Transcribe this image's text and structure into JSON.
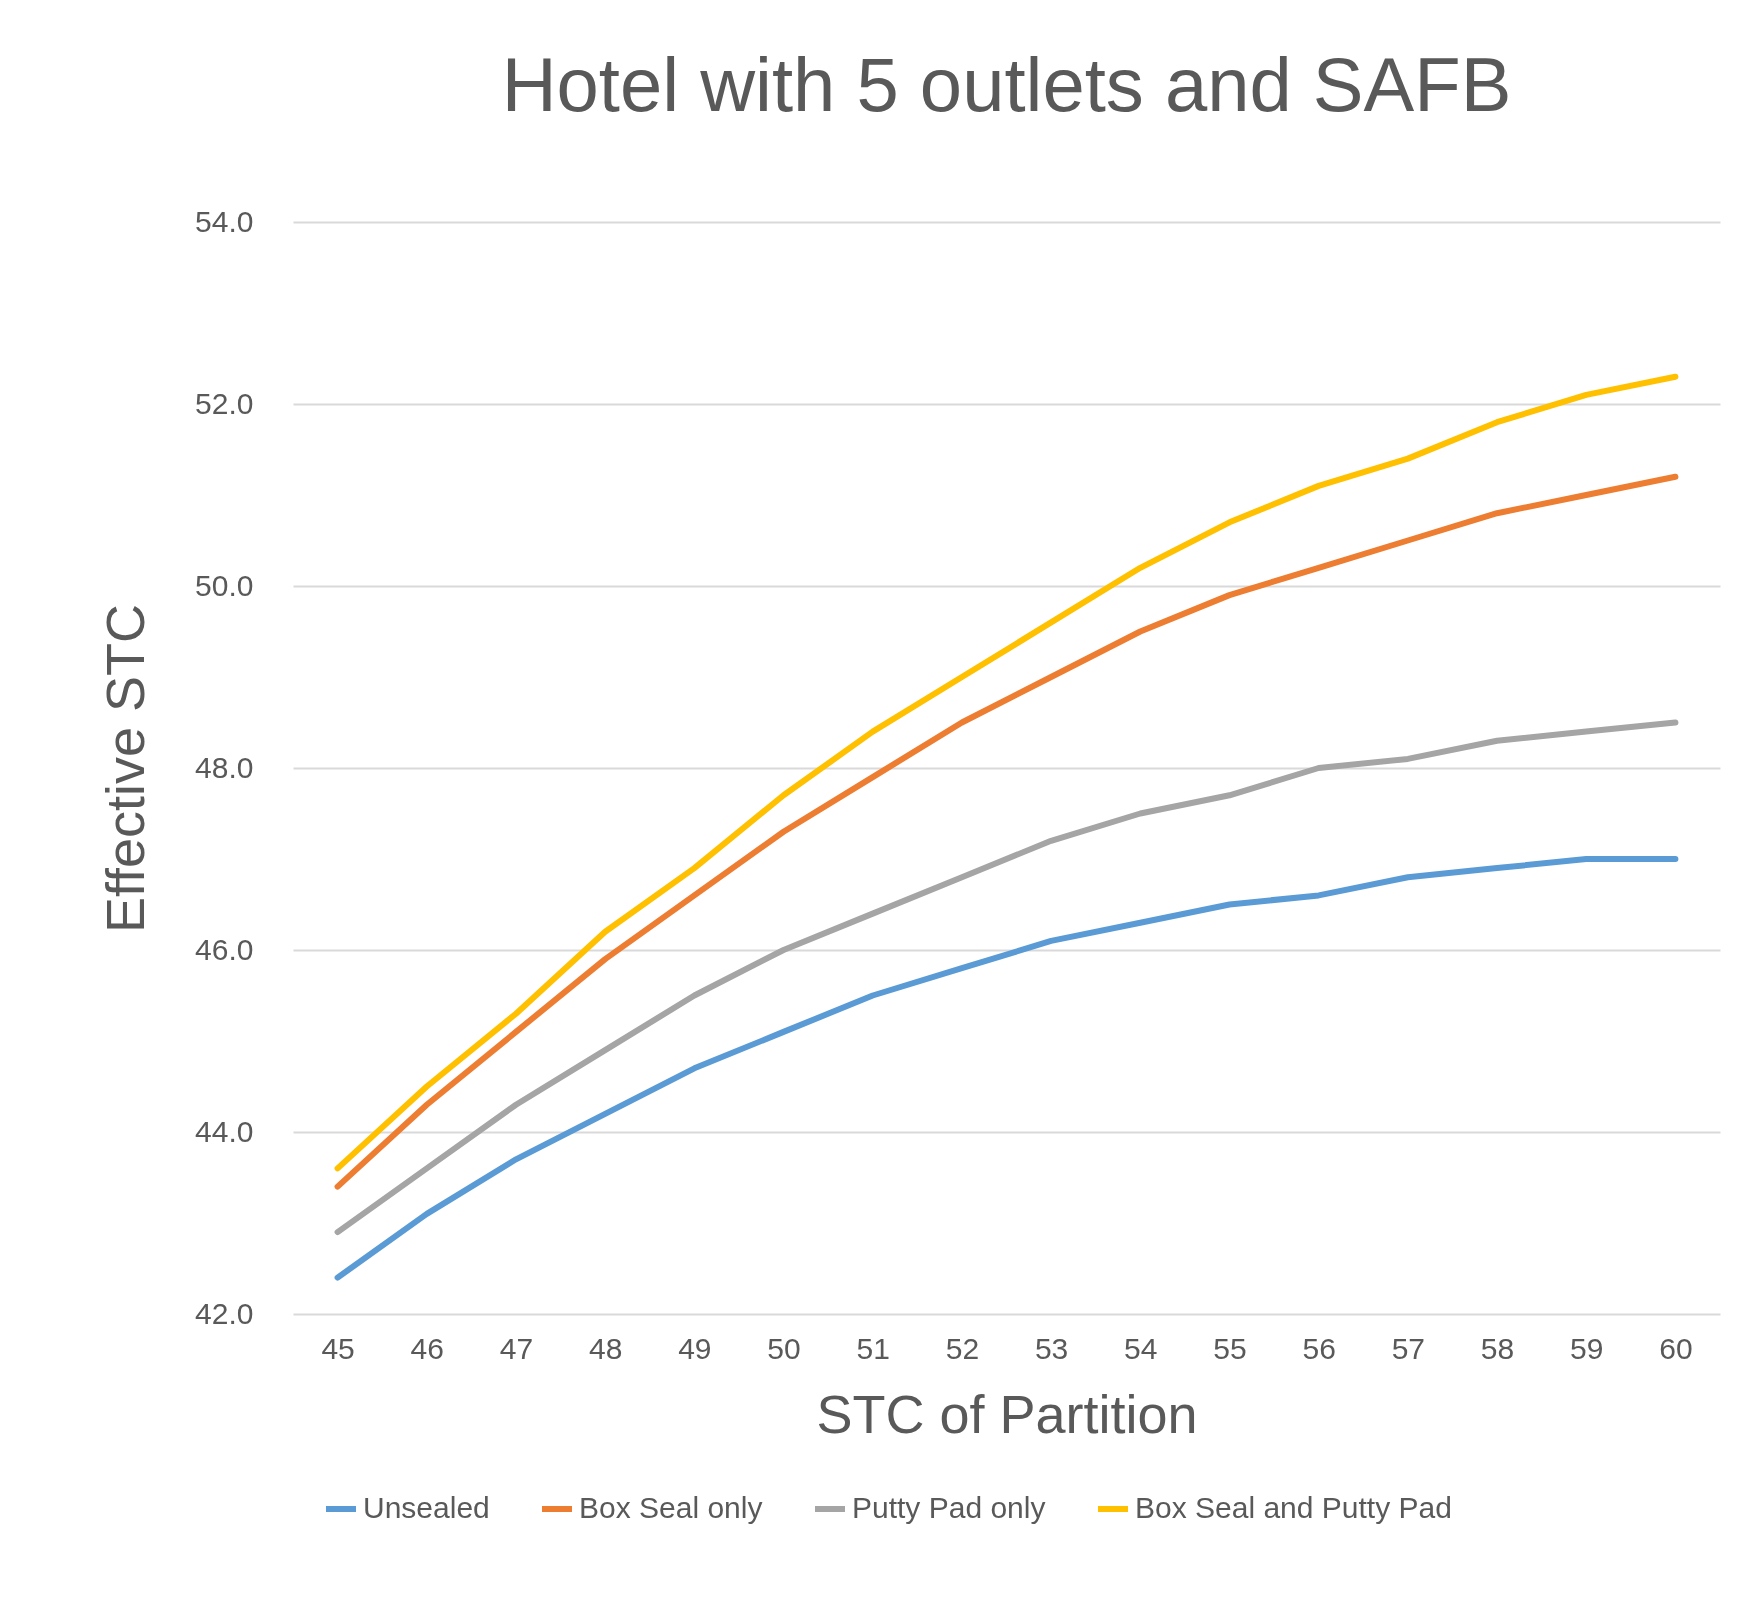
{
  "chart_data": {
    "type": "line",
    "title": "Hotel with 5 outlets and SAFB",
    "xlabel": "STC of Partition",
    "ylabel": "Effective STC",
    "categories": [
      "45",
      "46",
      "47",
      "48",
      "49",
      "50",
      "51",
      "52",
      "53",
      "54",
      "55",
      "56",
      "57",
      "58",
      "59",
      "60"
    ],
    "series": [
      {
        "name": "Unsealed",
        "color": "#5b9bd5",
        "values": [
          42.4,
          43.1,
          43.7,
          44.2,
          44.7,
          45.1,
          45.5,
          45.8,
          46.1,
          46.3,
          46.5,
          46.6,
          46.8,
          46.9,
          47.0,
          47.0
        ]
      },
      {
        "name": "Box Seal only",
        "color": "#ed7d31",
        "values": [
          43.4,
          44.3,
          45.1,
          45.9,
          46.6,
          47.3,
          47.9,
          48.5,
          49.0,
          49.5,
          49.9,
          50.2,
          50.5,
          50.8,
          51.0,
          51.2
        ]
      },
      {
        "name": "Putty Pad only",
        "color": "#a5a5a5",
        "values": [
          42.9,
          43.6,
          44.3,
          44.9,
          45.5,
          46.0,
          46.4,
          46.8,
          47.2,
          47.5,
          47.7,
          48.0,
          48.1,
          48.3,
          48.4,
          48.5
        ]
      },
      {
        "name": "Box Seal and Putty Pad",
        "color": "#ffc000",
        "values": [
          43.6,
          44.5,
          45.3,
          46.2,
          46.9,
          47.7,
          48.4,
          49.0,
          49.6,
          50.2,
          50.7,
          51.1,
          51.4,
          51.8,
          52.1,
          52.3
        ]
      }
    ],
    "ylim": [
      42,
      54
    ],
    "yticks": [
      {
        "value": 42,
        "label": "42.0"
      },
      {
        "value": 44,
        "label": "44.0"
      },
      {
        "value": 46,
        "label": "46.0"
      },
      {
        "value": 48,
        "label": "48.0"
      },
      {
        "value": 50,
        "label": "50.0"
      },
      {
        "value": 52,
        "label": "52.0"
      },
      {
        "value": 54,
        "label": "54.0"
      }
    ],
    "grid": "y",
    "legend": "bottom",
    "marker": "none",
    "line_style": "solid"
  }
}
